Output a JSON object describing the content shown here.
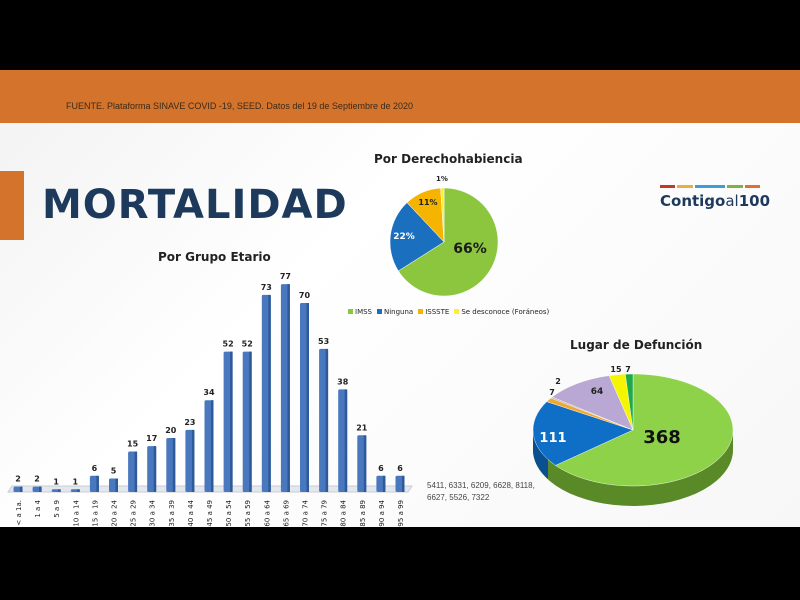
{
  "header": {
    "source": "FUENTE. Plataforma SINAVE COVID -19, SEED. Datos del 19 de Septiembre de 2020"
  },
  "slide": {
    "title": "MORTALIDAD",
    "logo": "Contigo al 100",
    "note": "5411, 6331, 6209, 6628, 8118, 6627, 5526, 7322"
  },
  "colors": {
    "orange": "#d4742c",
    "navy": "#1d3a5c",
    "bar": "#4a78be"
  },
  "chart_data": [
    {
      "type": "bar",
      "title": "Por Grupo Etario",
      "categories": [
        "< a 1a.",
        "1 a 4",
        "5 a 9",
        "10 a 14",
        "15 a 19",
        "20 a 24",
        "25 a 29",
        "30 a 34",
        "35 a 39",
        "40 a 44",
        "45 a 49",
        "50 a 54",
        "55 a 59",
        "60 a 64",
        "65 a 69",
        "70 a 74",
        "75 a 79",
        "80 a 84",
        "85 a 89",
        "90 a 94",
        "95 a 99"
      ],
      "values": [
        2,
        2,
        1,
        1,
        6,
        5,
        15,
        17,
        20,
        23,
        34,
        52,
        52,
        73,
        77,
        70,
        53,
        38,
        21,
        6,
        6
      ]
    },
    {
      "type": "pie",
      "title": "Por Derechohabiencia",
      "labels": [
        "IMSS",
        "Ninguna",
        "ISSSTE",
        "Se desconoce (Foráneos)"
      ],
      "values": [
        66,
        22,
        11,
        1
      ],
      "display": [
        "66%",
        "22%",
        "11%",
        "1%"
      ],
      "colors": [
        "#8cc63f",
        "#1a6fbf",
        "#f5b400",
        "#ffee33"
      ],
      "legend": "bottom"
    },
    {
      "type": "pie",
      "title": "Lugar de Defunción",
      "values": [
        368,
        111,
        7,
        2,
        64,
        15,
        7
      ],
      "colors": [
        "#8ed24a",
        "#0f6fc6",
        "#f0a830",
        "#b0b0b0",
        "#b9a8d4",
        "#f5f500",
        "#1faa4a"
      ]
    }
  ]
}
